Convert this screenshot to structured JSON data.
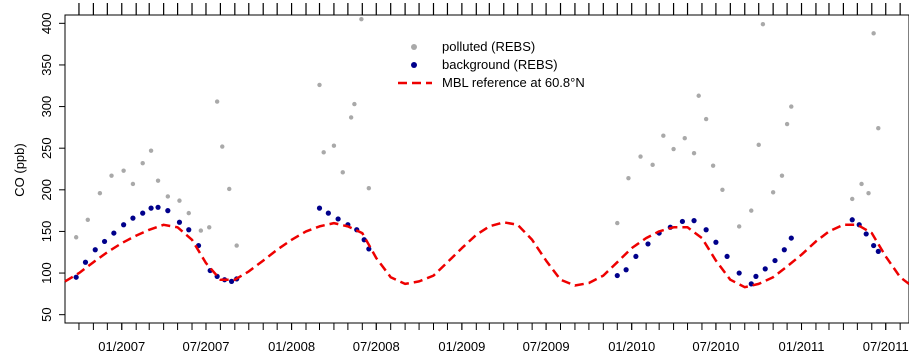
{
  "chart_data": {
    "type": "scatter",
    "ylabel": "CO (ppb)",
    "ylim": [
      40,
      410
    ],
    "xlim": [
      "2006-09-01",
      "2011-08-20"
    ],
    "yticks": [
      50,
      100,
      150,
      200,
      250,
      300,
      350,
      400
    ],
    "xticks": [
      {
        "date": "2007-01-01",
        "label": "01/2007"
      },
      {
        "date": "2007-07-01",
        "label": "07/2007"
      },
      {
        "date": "2008-01-01",
        "label": "01/2008"
      },
      {
        "date": "2008-07-01",
        "label": "07/2008"
      },
      {
        "date": "2009-01-01",
        "label": "01/2009"
      },
      {
        "date": "2009-07-01",
        "label": "07/2009"
      },
      {
        "date": "2010-01-01",
        "label": "01/2010"
      },
      {
        "date": "2010-07-01",
        "label": "07/2010"
      },
      {
        "date": "2011-01-01",
        "label": "01/2011"
      },
      {
        "date": "2011-07-01",
        "label": "07/2011"
      }
    ],
    "legend_position": "top-center",
    "series": [
      {
        "name": "polluted (REBS)",
        "kind": "points",
        "color": "#a9a9a9",
        "x": [
          "2006-09-25",
          "2006-10-20",
          "2006-11-15",
          "2006-12-10",
          "2007-01-05",
          "2007-01-25",
          "2007-02-15",
          "2007-03-05",
          "2007-03-20",
          "2007-04-10",
          "2007-05-05",
          "2007-05-25",
          "2007-06-20",
          "2007-07-08",
          "2007-07-25",
          "2007-08-05",
          "2007-08-20",
          "2007-09-05",
          "2008-03-01",
          "2008-03-10",
          "2008-04-01",
          "2008-04-20",
          "2008-05-08",
          "2008-05-15",
          "2008-05-30",
          "2008-06-15",
          "2009-12-01",
          "2009-12-25",
          "2010-01-20",
          "2010-02-15",
          "2010-03-10",
          "2010-04-01",
          "2010-04-25",
          "2010-05-15",
          "2010-05-25",
          "2010-06-10",
          "2010-06-25",
          "2010-07-15",
          "2010-08-20",
          "2010-09-15",
          "2010-10-01",
          "2010-10-10",
          "2010-11-01",
          "2010-11-20",
          "2010-12-01",
          "2010-12-10",
          "2011-04-20",
          "2011-05-10",
          "2011-05-25",
          "2011-06-05",
          "2011-06-15"
        ],
        "y": [
          143,
          164,
          196,
          217,
          223,
          207,
          232,
          247,
          211,
          192,
          187,
          172,
          151,
          155,
          306,
          252,
          201,
          133,
          326,
          245,
          253,
          221,
          287,
          303,
          405,
          202,
          160,
          214,
          240,
          230,
          265,
          249,
          262,
          244,
          313,
          285,
          229,
          200,
          156,
          175,
          254,
          399,
          197,
          217,
          279,
          300,
          189,
          207,
          196,
          388,
          274
        ]
      },
      {
        "name": "background (REBS)",
        "kind": "points",
        "color": "#00008b",
        "x": [
          "2006-09-25",
          "2006-10-15",
          "2006-11-05",
          "2006-11-25",
          "2006-12-15",
          "2007-01-05",
          "2007-01-25",
          "2007-02-15",
          "2007-03-05",
          "2007-03-20",
          "2007-04-10",
          "2007-05-05",
          "2007-05-25",
          "2007-06-15",
          "2007-07-10",
          "2007-07-25",
          "2007-08-10",
          "2007-08-25",
          "2007-09-05",
          "2008-03-01",
          "2008-03-20",
          "2008-04-10",
          "2008-05-01",
          "2008-05-20",
          "2008-06-05",
          "2008-06-15",
          "2009-12-01",
          "2009-12-20",
          "2010-01-10",
          "2010-02-05",
          "2010-03-01",
          "2010-03-25",
          "2010-04-20",
          "2010-05-15",
          "2010-06-10",
          "2010-07-01",
          "2010-07-25",
          "2010-08-20",
          "2010-09-15",
          "2010-09-25",
          "2010-10-15",
          "2010-11-05",
          "2010-11-25",
          "2010-12-10",
          "2011-04-20",
          "2011-05-05",
          "2011-05-20",
          "2011-06-05",
          "2011-06-15"
        ],
        "y": [
          95,
          113,
          128,
          138,
          148,
          158,
          166,
          172,
          178,
          179,
          175,
          161,
          152,
          133,
          103,
          96,
          92,
          90,
          93,
          178,
          172,
          165,
          158,
          152,
          140,
          129,
          97,
          104,
          120,
          135,
          148,
          155,
          162,
          163,
          152,
          137,
          120,
          100,
          87,
          96,
          105,
          115,
          128,
          142,
          164,
          158,
          147,
          133,
          126
        ]
      },
      {
        "name": "MBL reference at 60.8°N",
        "kind": "line",
        "color": "#ee0000",
        "x": [
          "2006-09-01",
          "2006-10-01",
          "2006-11-01",
          "2006-12-01",
          "2007-01-01",
          "2007-02-01",
          "2007-03-01",
          "2007-04-01",
          "2007-05-01",
          "2007-06-01",
          "2007-07-01",
          "2007-08-01",
          "2007-09-01",
          "2007-10-01",
          "2007-11-01",
          "2007-12-01",
          "2008-01-01",
          "2008-02-01",
          "2008-03-01",
          "2008-04-01",
          "2008-05-01",
          "2008-06-01",
          "2008-07-01",
          "2008-08-01",
          "2008-09-01",
          "2008-10-01",
          "2008-11-01",
          "2008-12-01",
          "2009-01-01",
          "2009-02-01",
          "2009-03-01",
          "2009-04-01",
          "2009-05-01",
          "2009-06-01",
          "2009-07-01",
          "2009-08-01",
          "2009-09-01",
          "2009-10-01",
          "2009-11-01",
          "2009-12-01",
          "2010-01-01",
          "2010-02-01",
          "2010-03-01",
          "2010-04-01",
          "2010-05-01",
          "2010-06-01",
          "2010-07-01",
          "2010-08-01",
          "2010-09-01",
          "2010-10-01",
          "2010-11-01",
          "2010-12-01",
          "2011-01-01",
          "2011-02-01",
          "2011-03-01",
          "2011-04-01",
          "2011-05-01",
          "2011-06-01",
          "2011-07-01",
          "2011-08-01",
          "2011-08-20"
        ],
        "y": [
          90,
          100,
          113,
          125,
          136,
          145,
          152,
          158,
          155,
          140,
          112,
          92,
          92,
          102,
          115,
          128,
          140,
          150,
          156,
          160,
          156,
          148,
          118,
          95,
          87,
          90,
          97,
          113,
          130,
          146,
          156,
          161,
          158,
          140,
          115,
          92,
          85,
          88,
          97,
          113,
          130,
          142,
          150,
          155,
          155,
          142,
          115,
          92,
          83,
          87,
          95,
          108,
          122,
          138,
          150,
          158,
          158,
          148,
          120,
          95,
          87
        ]
      }
    ]
  }
}
